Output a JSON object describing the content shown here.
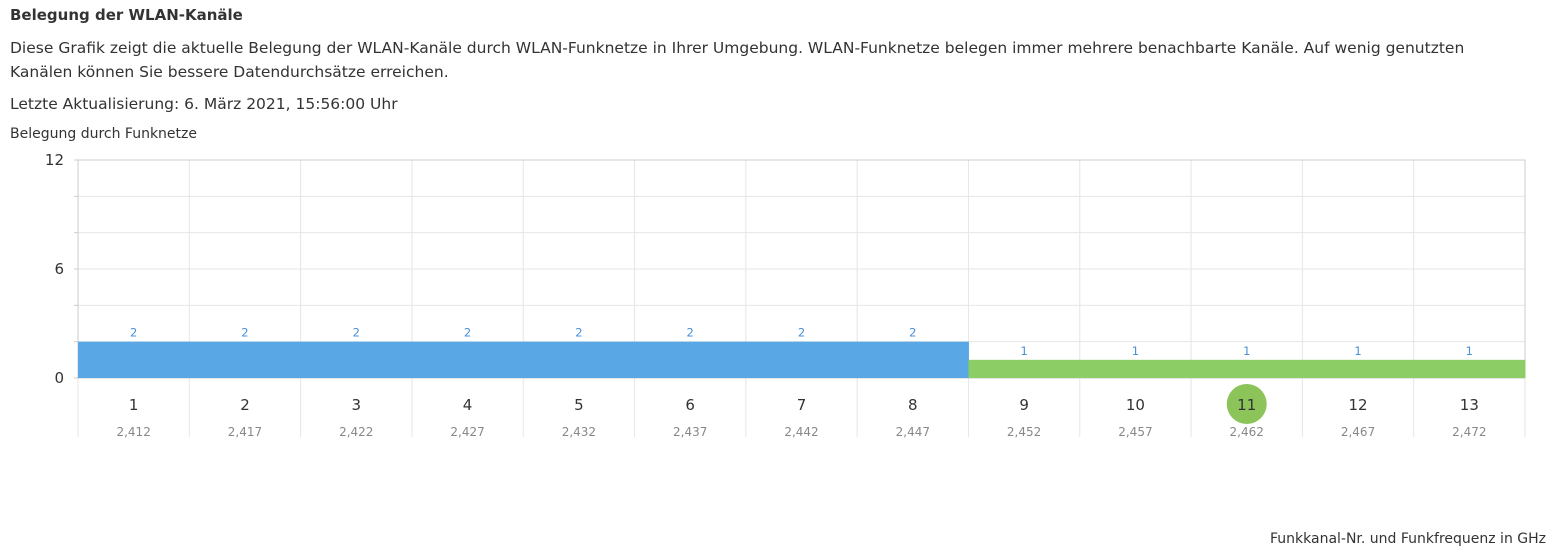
{
  "page": {
    "title": "Belegung der WLAN-Kanäle",
    "description": "Diese Grafik zeigt die aktuelle Belegung der WLAN-Kanäle durch WLAN-Funknetze in Ihrer Umgebung. WLAN-Funknetze belegen immer mehrere benachbarte Kanäle. Auf wenig genutzten Kanälen können Sie bessere Datendurchsätze erreichen.",
    "last_update": "Letzte Aktualisierung: 6. März 2021, 15:56:00 Uhr"
  },
  "colors": {
    "occupied_blue": "#5aa7e5",
    "own_green": "#8ccd65",
    "highlight_green": "#8cc45a",
    "grid": "#e6e6e6",
    "axis": "#cccccc",
    "data_label": "#4a90d9"
  },
  "chart_data": {
    "type": "bar",
    "ylabel": "Belegung durch Funknetze",
    "xlabel": "Funkkanal-Nr. und Funkfrequenz in GHz",
    "ylim": [
      0,
      12
    ],
    "yticks": [
      0,
      6,
      12
    ],
    "grid": true,
    "categories": [
      "1",
      "2",
      "3",
      "4",
      "5",
      "6",
      "7",
      "8",
      "9",
      "10",
      "11",
      "12",
      "13"
    ],
    "frequencies": [
      "2,412",
      "2,417",
      "2,422",
      "2,427",
      "2,432",
      "2,437",
      "2,442",
      "2,447",
      "2,452",
      "2,457",
      "2,462",
      "2,467",
      "2,472"
    ],
    "values": [
      2,
      2,
      2,
      2,
      2,
      2,
      2,
      2,
      1,
      1,
      1,
      1,
      1
    ],
    "bar_colors": [
      "blue",
      "blue",
      "blue",
      "blue",
      "blue",
      "blue",
      "blue",
      "blue",
      "green",
      "green",
      "green",
      "green",
      "green"
    ],
    "highlighted_channel": "11"
  }
}
